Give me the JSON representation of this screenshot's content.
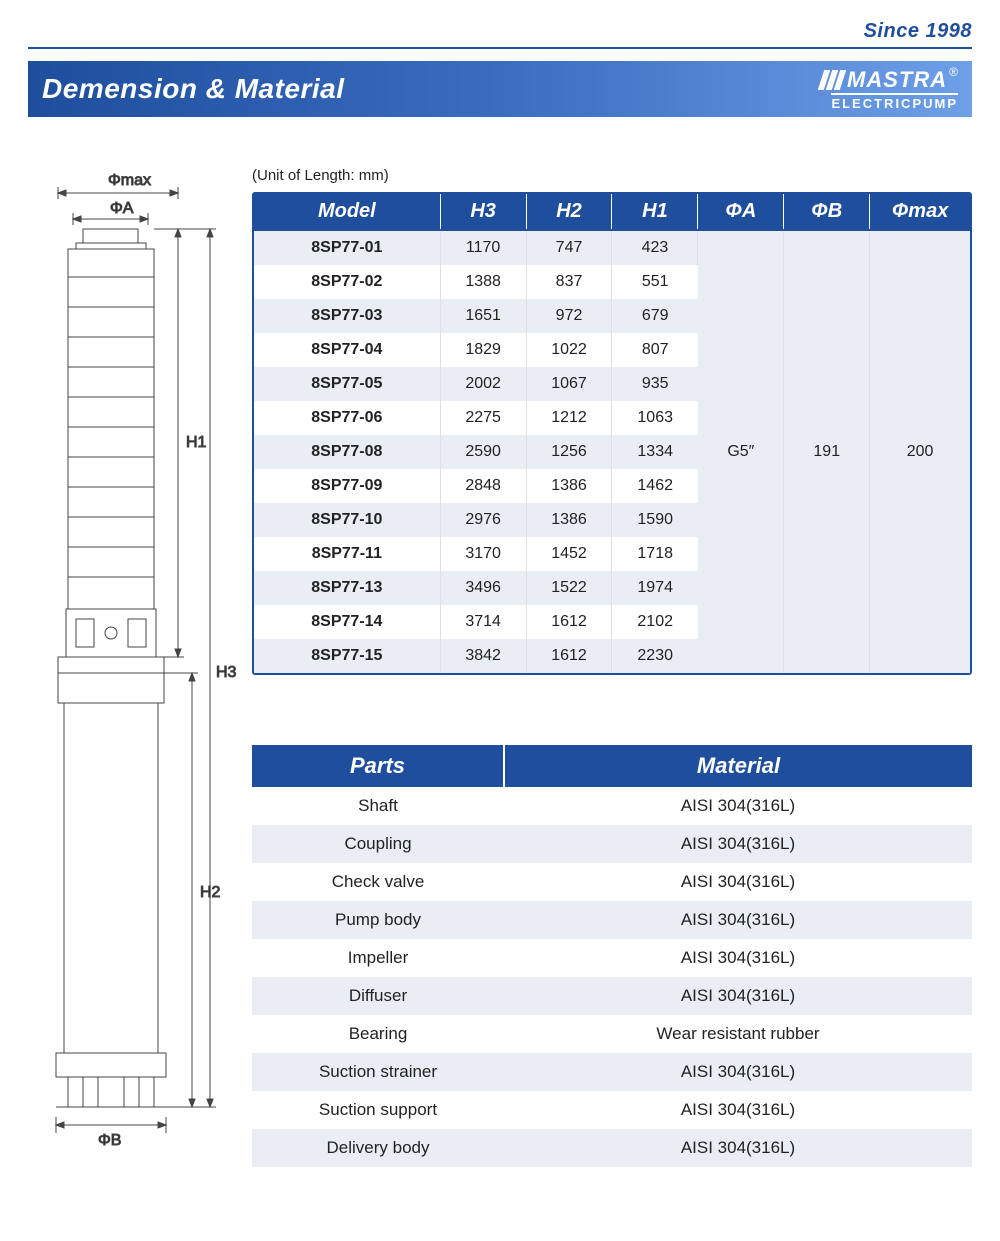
{
  "header": {
    "since": "Since 1998",
    "brand": "MASTRA",
    "sub": "ELECTRICPUMP",
    "reg": "®"
  },
  "title": "Demension & Material",
  "unit_note": "(Unit of Length: mm)",
  "dim_table": {
    "columns": [
      "Model",
      "H3",
      "H2",
      "H1",
      "ΦA",
      "ΦB",
      "Φmax"
    ],
    "col_widths": [
      "26%",
      "12%",
      "12%",
      "12%",
      "12%",
      "12%",
      "14%"
    ],
    "header_bg": "#1e4e9c",
    "header_fg": "#ffffff",
    "row_alt_bg": "#e9eef5",
    "rows": [
      [
        "8SP77-01",
        "1170",
        "747",
        "423"
      ],
      [
        "8SP77-02",
        "1388",
        "837",
        "551"
      ],
      [
        "8SP77-03",
        "1651",
        "972",
        "679"
      ],
      [
        "8SP77-04",
        "1829",
        "1022",
        "807"
      ],
      [
        "8SP77-05",
        "2002",
        "1067",
        "935"
      ],
      [
        "8SP77-06",
        "2275",
        "1212",
        "1063"
      ],
      [
        "8SP77-08",
        "2590",
        "1256",
        "1334"
      ],
      [
        "8SP77-09",
        "2848",
        "1386",
        "1462"
      ],
      [
        "8SP77-10",
        "2976",
        "1386",
        "1590"
      ],
      [
        "8SP77-11",
        "3170",
        "1452",
        "1718"
      ],
      [
        "8SP77-13",
        "3496",
        "1522",
        "1974"
      ],
      [
        "8SP77-14",
        "3714",
        "1612",
        "2102"
      ],
      [
        "8SP77-15",
        "3842",
        "1612",
        "2230"
      ]
    ],
    "merged": {
      "phiA": "G5″",
      "phiB": "191",
      "phimax": "200"
    }
  },
  "mat_table": {
    "columns": [
      "Parts",
      "Material"
    ],
    "rows": [
      [
        "Shaft",
        "AISI 304(316L)"
      ],
      [
        "Coupling",
        "AISI 304(316L)"
      ],
      [
        "Check valve",
        "AISI 304(316L)"
      ],
      [
        "Pump body",
        "AISI 304(316L)"
      ],
      [
        "Impeller",
        "AISI 304(316L)"
      ],
      [
        "Diffuser",
        "AISI 304(316L)"
      ],
      [
        "Bearing",
        "Wear resistant rubber"
      ],
      [
        "Suction strainer",
        "AISI 304(316L)"
      ],
      [
        "Suction support",
        "AISI 304(316L)"
      ],
      [
        "Delivery body",
        "AISI 304(316L)"
      ]
    ]
  },
  "diagram": {
    "labels": {
      "phimax": "Φmax",
      "phiA": "ΦA",
      "phiB": "ΦB",
      "H1": "H1",
      "H2": "H2",
      "H3": "H3"
    },
    "stroke": "#444"
  },
  "colors": {
    "primary": "#1e4e9c",
    "gradient_end": "#6ea0e8"
  }
}
